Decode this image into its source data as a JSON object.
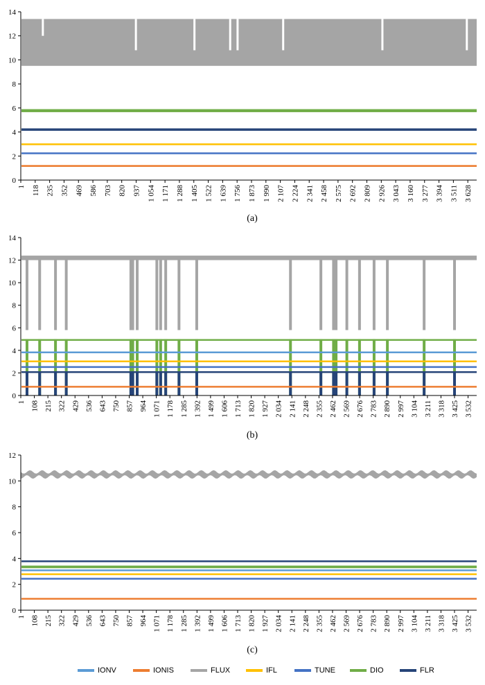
{
  "legend": {
    "entries": [
      {
        "name": "IONV",
        "color": "#5b9bd5"
      },
      {
        "name": "IONIS",
        "color": "#ed7d31"
      },
      {
        "name": "FLUX",
        "color": "#a5a5a5"
      },
      {
        "name": "IFL",
        "color": "#ffc000"
      },
      {
        "name": "TUNE",
        "color": "#4472c4"
      },
      {
        "name": "DIO",
        "color": "#70ad47"
      },
      {
        "name": "FLR",
        "color": "#264478"
      }
    ]
  },
  "chart_data": [
    {
      "type": "line",
      "caption": "(a)",
      "ylim": [
        0,
        14
      ],
      "yticks": [
        "0",
        "2",
        "4",
        "6",
        "8",
        "10",
        "12",
        "14"
      ],
      "xlim": [
        1,
        3700
      ],
      "xticks": [
        1,
        118,
        235,
        352,
        469,
        586,
        703,
        820,
        937,
        1054,
        1171,
        1288,
        1405,
        1522,
        1639,
        1756,
        1873,
        1990,
        2107,
        2224,
        2341,
        2458,
        2575,
        2692,
        2809,
        2926,
        3043,
        3160,
        3277,
        3394,
        3511,
        3628
      ],
      "xtick_labels": [
        "1",
        "118",
        "235",
        "352",
        "469",
        "586",
        "703",
        "820",
        "937",
        "1 054",
        "1 171",
        "1 288",
        "1 405",
        "1 522",
        "1 639",
        "1 756",
        "1 873",
        "1 990",
        "2 107",
        "2 224",
        "2 341",
        "2 458",
        "2 575",
        "2 692",
        "2 809",
        "2 926",
        "3 043",
        "3 160",
        "3 277",
        "3 394",
        "3 511",
        "3 628"
      ],
      "series": [
        {
          "name": "FLUX",
          "band": [
            9.5,
            13.4
          ],
          "spikes": [
            {
              "x": 180,
              "y": 12
            },
            {
              "x": 935,
              "y": 10.8
            },
            {
              "x": 1410,
              "y": 10.8
            },
            {
              "x": 1700,
              "y": 10.8
            },
            {
              "x": 1760,
              "y": 10.8
            },
            {
              "x": 2130,
              "y": 10.8
            },
            {
              "x": 2935,
              "y": 10.8
            },
            {
              "x": 3620,
              "y": 10.8
            }
          ]
        },
        {
          "name": "DIO",
          "band": [
            5.65,
            5.9
          ]
        },
        {
          "name": "FLR",
          "band": [
            4.1,
            4.3
          ]
        },
        {
          "name": "IFL",
          "band": [
            2.95,
            3.05
          ]
        },
        {
          "name": "TUNE",
          "band": [
            2.2,
            2.3
          ]
        },
        {
          "name": "IONIS",
          "band": [
            1.1,
            1.25
          ]
        }
      ]
    },
    {
      "type": "line",
      "caption": "(b)",
      "ylim": [
        0,
        14
      ],
      "yticks": [
        "0",
        "2",
        "4",
        "6",
        "8",
        "10",
        "12",
        "14"
      ],
      "xlim": [
        1,
        3600
      ],
      "xticks": [
        1,
        108,
        215,
        322,
        429,
        536,
        643,
        750,
        857,
        964,
        1071,
        1178,
        1285,
        1392,
        1499,
        1606,
        1713,
        1820,
        1927,
        2034,
        2141,
        2248,
        2355,
        2462,
        2569,
        2676,
        2783,
        2890,
        2997,
        3104,
        3211,
        3318,
        3425,
        3532
      ],
      "xtick_labels": [
        "1",
        "108",
        "215",
        "322",
        "429",
        "536",
        "643",
        "750",
        "857",
        "964",
        "1 071",
        "1 178",
        "1 285",
        "1 392",
        "1 499",
        "1 606",
        "1 713",
        "1 820",
        "1 927",
        "2 034",
        "2 141",
        "2 248",
        "2 355",
        "2 462",
        "2 569",
        "2 676",
        "2 783",
        "2 890",
        "2 997",
        "3 104",
        "3 211",
        "3 318",
        "3 425",
        "3 532"
      ],
      "dips": [
        50,
        150,
        275,
        360,
        870,
        885,
        920,
        1075,
        1105,
        1145,
        1250,
        1390,
        2130,
        2370,
        2470,
        2490,
        2575,
        2675,
        2790,
        2895,
        3185,
        3425
      ],
      "series": [
        {
          "name": "FLUX",
          "band": [
            12.0,
            12.4
          ],
          "dip_to": 5.8
        },
        {
          "name": "DIO",
          "band": [
            4.9,
            5.0
          ],
          "dip_to": 0
        },
        {
          "name": "IONV",
          "band": [
            3.8,
            3.9
          ]
        },
        {
          "name": "IFL",
          "band": [
            3.0,
            3.1
          ]
        },
        {
          "name": "TUNE",
          "band": [
            2.5,
            2.6
          ]
        },
        {
          "name": "FLR",
          "band": [
            2.0,
            2.15
          ],
          "dip_to": 0
        },
        {
          "name": "IONIS",
          "band": [
            0.75,
            0.85
          ]
        }
      ]
    },
    {
      "type": "line",
      "caption": "(c)",
      "ylim": [
        0,
        12
      ],
      "yticks": [
        "0",
        "2",
        "4",
        "6",
        "8",
        "10",
        "12"
      ],
      "xlim": [
        1,
        3600
      ],
      "xticks": [
        1,
        108,
        215,
        322,
        429,
        536,
        643,
        750,
        857,
        964,
        1071,
        1178,
        1285,
        1392,
        1499,
        1606,
        1713,
        1820,
        1927,
        2034,
        2141,
        2248,
        2355,
        2462,
        2569,
        2676,
        2783,
        2890,
        2997,
        3104,
        3211,
        3318,
        3425,
        3532
      ],
      "xtick_labels": [
        "1",
        "108",
        "215",
        "322",
        "429",
        "536",
        "643",
        "750",
        "857",
        "964",
        "1 071",
        "1 178",
        "1 285",
        "1 392",
        "1 499",
        "1 606",
        "1 713",
        "1 820",
        "1 927",
        "2 034",
        "2 141",
        "2 248",
        "2 355",
        "2 462",
        "2 569",
        "2 676",
        "2 783",
        "2 890",
        "2 997",
        "3 104",
        "3 211",
        "3 318",
        "3 425",
        "3 532"
      ],
      "series": [
        {
          "name": "FLUX",
          "band": [
            10.2,
            10.8
          ],
          "wavy": true
        },
        {
          "name": "FLR",
          "band": [
            3.75,
            3.85
          ]
        },
        {
          "name": "DIO",
          "band": [
            3.25,
            3.45
          ]
        },
        {
          "name": "IONV",
          "band": [
            3.05,
            3.15
          ]
        },
        {
          "name": "IFL",
          "band": [
            2.75,
            2.85
          ]
        },
        {
          "name": "TUNE",
          "band": [
            2.4,
            2.5
          ]
        },
        {
          "name": "IONIS",
          "band": [
            0.85,
            0.95
          ]
        }
      ]
    }
  ]
}
